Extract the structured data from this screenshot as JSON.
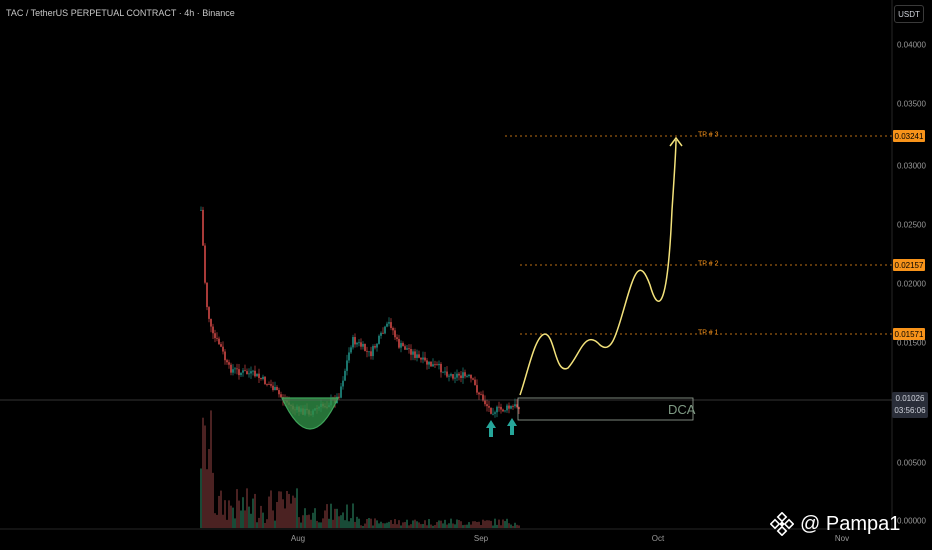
{
  "header": {
    "title": "TAC / TetherUS PERPETUAL CONTRACT · 4h · Binance",
    "unit": "USDT"
  },
  "chart_data": {
    "type": "line",
    "y_ticks": [
      "0.04000",
      "0.03500",
      "0.03000",
      "0.02500",
      "0.02000",
      "0.01500",
      "0.00500",
      "0.00000"
    ],
    "x_ticks": [
      "Aug",
      "Sep",
      "Oct",
      "Nov"
    ],
    "targets": [
      {
        "label": "TP # 3",
        "price": "0.03241"
      },
      {
        "label": "TP # 2",
        "price": "0.02157"
      },
      {
        "label": "TP # 1",
        "price": "0.01571"
      }
    ],
    "current": {
      "price": "0.01026",
      "countdown": "03:56:06"
    },
    "zone_label": "DCA",
    "colors": {
      "target": "#f7931a",
      "projection": "#f3e27b",
      "bull": "#26a69a",
      "bear": "#ef5350",
      "pattern": "#3fa35a"
    }
  },
  "watermark": {
    "text": "@ Pampa1",
    "icon": "binance-logo-icon"
  }
}
